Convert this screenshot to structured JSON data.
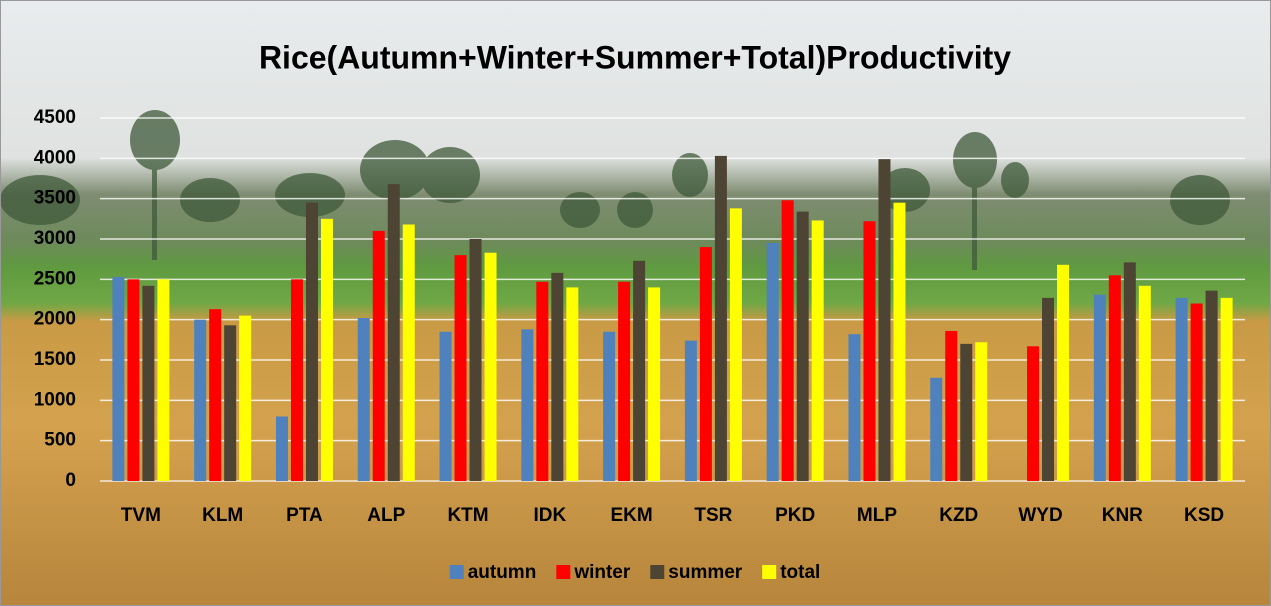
{
  "chart_data": {
    "type": "bar",
    "title": "Rice(Autumn+Winter+Summer+Total)Productivity",
    "categories": [
      "TVM",
      "KLM",
      "PTA",
      "ALP",
      "KTM",
      "IDK",
      "EKM",
      "TSR",
      "PKD",
      "MLP",
      "KZD",
      "WYD",
      "KNR",
      "KSD"
    ],
    "series": [
      {
        "name": "autumn",
        "color": "#4f81bd",
        "values": [
          2530,
          2000,
          800,
          2020,
          1850,
          1880,
          1850,
          1740,
          2950,
          1820,
          1280,
          null,
          2310,
          2270
        ]
      },
      {
        "name": "winter",
        "color": "#ff0000",
        "values": [
          2500,
          2130,
          2500,
          3100,
          2800,
          2470,
          2470,
          2900,
          3480,
          3220,
          1860,
          1670,
          2550,
          2200
        ]
      },
      {
        "name": "summer",
        "color": "#4d4433",
        "values": [
          2420,
          1930,
          3450,
          3680,
          3000,
          2580,
          2730,
          4030,
          3340,
          3990,
          1700,
          2270,
          2710,
          2360
        ]
      },
      {
        "name": "total",
        "color": "#ffff00",
        "values": [
          2500,
          2050,
          3250,
          3180,
          2830,
          2400,
          2400,
          3380,
          3230,
          3450,
          1720,
          2680,
          2420,
          2270
        ]
      }
    ],
    "ylim": [
      0,
      4500
    ],
    "yticks": [
      0,
      500,
      1000,
      1500,
      2000,
      2500,
      3000,
      3500,
      4000,
      4500
    ],
    "grid": true,
    "legend": "bottom"
  }
}
